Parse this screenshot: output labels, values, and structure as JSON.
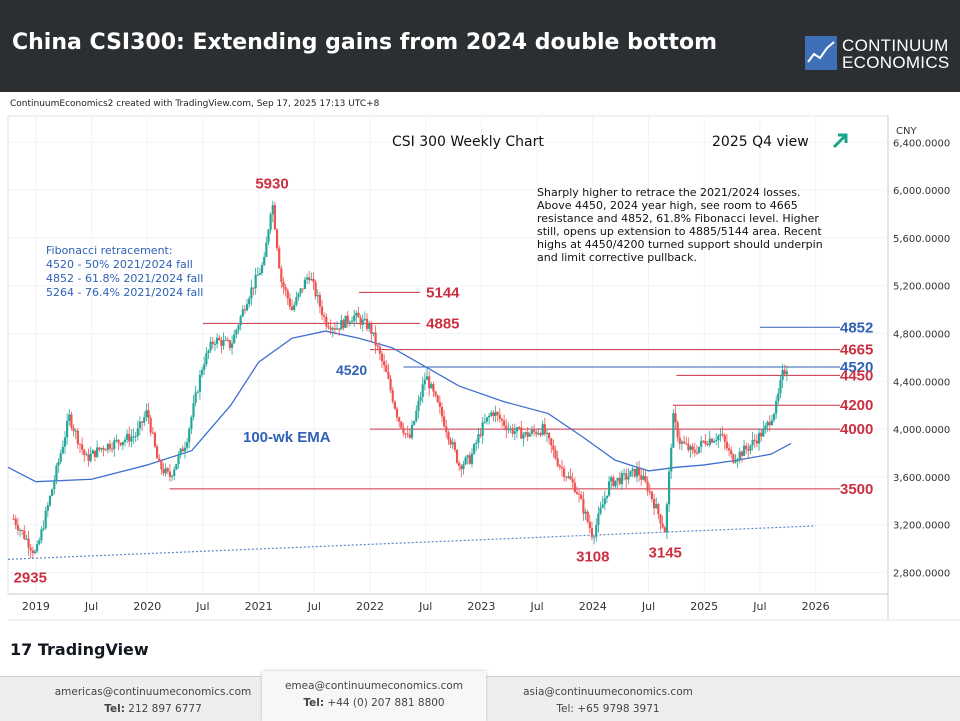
{
  "header": {
    "title": "China CSI300: Extending gains from 2024 double bottom",
    "logo_line1": "CONTINUUM",
    "logo_line2": "ECONOMICS"
  },
  "credit": "ContinuumEconomics2 created with TradingView.com, Sep 17, 2025 17:13 UTC+8",
  "chart_data": {
    "type": "candlestick",
    "title": "CSI 300 Weekly Chart",
    "subtitle": "2025 Q4 view",
    "currency_label": "CNY",
    "x_ticks": [
      "2019",
      "Jul",
      "2020",
      "Jul",
      "2021",
      "Jul",
      "2022",
      "Jul",
      "2023",
      "Jul",
      "2024",
      "Jul",
      "2025",
      "Jul",
      "2026"
    ],
    "y_ticks": [
      "6,400.0000",
      "6,000.0000",
      "5,600.0000",
      "5,200.0000",
      "4,800.0000",
      "4,400.0000",
      "4,000.0000",
      "3,600.0000",
      "3,200.0000",
      "2,800.0000"
    ],
    "y_tick_values": [
      6400,
      6000,
      5600,
      5200,
      4800,
      4400,
      4000,
      3600,
      3200,
      2800
    ],
    "ylim": [
      2620,
      6620
    ],
    "xlim": [
      2018.75,
      2026.65
    ],
    "price_path": [
      [
        2018.8,
        3250
      ],
      [
        2019.0,
        2950
      ],
      [
        2019.12,
        3400
      ],
      [
        2019.3,
        4100
      ],
      [
        2019.45,
        3750
      ],
      [
        2019.6,
        3850
      ],
      [
        2019.75,
        3900
      ],
      [
        2019.9,
        3950
      ],
      [
        2020.0,
        4150
      ],
      [
        2020.1,
        3700
      ],
      [
        2020.2,
        3600
      ],
      [
        2020.35,
        3900
      ],
      [
        2020.5,
        4550
      ],
      [
        2020.6,
        4750
      ],
      [
        2020.75,
        4700
      ],
      [
        2020.9,
        5100
      ],
      [
        2021.05,
        5400
      ],
      [
        2021.12,
        5930
      ],
      [
        2021.2,
        5250
      ],
      [
        2021.3,
        5000
      ],
      [
        2021.45,
        5300
      ],
      [
        2021.6,
        4900
      ],
      [
        2021.7,
        4850
      ],
      [
        2021.85,
        4950
      ],
      [
        2022.0,
        4850
      ],
      [
        2022.15,
        4450
      ],
      [
        2022.25,
        4100
      ],
      [
        2022.35,
        3900
      ],
      [
        2022.5,
        4450
      ],
      [
        2022.65,
        4100
      ],
      [
        2022.8,
        3700
      ],
      [
        2022.9,
        3750
      ],
      [
        2023.0,
        4000
      ],
      [
        2023.1,
        4150
      ],
      [
        2023.25,
        4000
      ],
      [
        2023.4,
        3950
      ],
      [
        2023.55,
        4000
      ],
      [
        2023.7,
        3700
      ],
      [
        2023.85,
        3500
      ],
      [
        2024.0,
        3108
      ],
      [
        2024.15,
        3550
      ],
      [
        2024.3,
        3600
      ],
      [
        2024.4,
        3650
      ],
      [
        2024.5,
        3500
      ],
      [
        2024.65,
        3145
      ],
      [
        2024.72,
        4100
      ],
      [
        2024.78,
        3900
      ],
      [
        2024.9,
        3800
      ],
      [
        2025.0,
        3900
      ],
      [
        2025.15,
        3950
      ],
      [
        2025.25,
        3750
      ],
      [
        2025.4,
        3850
      ],
      [
        2025.55,
        4000
      ],
      [
        2025.65,
        4200
      ],
      [
        2025.7,
        4450
      ],
      [
        2025.75,
        4530
      ]
    ],
    "ema_path": [
      [
        2018.75,
        3680
      ],
      [
        2019.0,
        3560
      ],
      [
        2019.5,
        3580
      ],
      [
        2020.0,
        3700
      ],
      [
        2020.4,
        3820
      ],
      [
        2020.75,
        4200
      ],
      [
        2021.0,
        4560
      ],
      [
        2021.3,
        4760
      ],
      [
        2021.6,
        4820
      ],
      [
        2021.9,
        4760
      ],
      [
        2022.2,
        4680
      ],
      [
        2022.5,
        4520
      ],
      [
        2022.8,
        4360
      ],
      [
        2023.2,
        4230
      ],
      [
        2023.6,
        4130
      ],
      [
        2023.9,
        3940
      ],
      [
        2024.2,
        3740
      ],
      [
        2024.5,
        3650
      ],
      [
        2024.75,
        3680
      ],
      [
        2025.0,
        3700
      ],
      [
        2025.3,
        3740
      ],
      [
        2025.6,
        3790
      ],
      [
        2025.78,
        3880
      ]
    ],
    "trendline": {
      "label": "trendline",
      "from": [
        2018.75,
        2910
      ],
      "to": [
        2026.0,
        3190
      ]
    },
    "levels": [
      {
        "value": 4852,
        "label": "4852",
        "color": "#2f61b5",
        "x_from": 2025.5
      },
      {
        "value": 4665,
        "label": "4665",
        "color": "#cc3040",
        "x_from": 2022.0
      },
      {
        "value": 4520,
        "label": "4520",
        "color": "#2f61b5",
        "x_from": 2022.3
      },
      {
        "value": 4450,
        "label": "4450",
        "color": "#cc3040",
        "x_from": 2024.75
      },
      {
        "value": 4200,
        "label": "4200",
        "color": "#cc3040",
        "x_from": 2024.72
      },
      {
        "value": 4000,
        "label": "4000",
        "color": "#cc3040",
        "x_from": 2022.0
      },
      {
        "value": 3500,
        "label": "3500",
        "color": "#cc3040",
        "x_from": 2020.2
      },
      {
        "value": 5144,
        "label": "5144",
        "color": "#cc3040",
        "x_from": 2021.9,
        "x_to": 2022.45
      },
      {
        "value": 4885,
        "label": "4885",
        "color": "#cc3040",
        "x_from": 2020.5,
        "x_to": 2022.45
      }
    ],
    "annotations": [
      {
        "text": "5930",
        "value": 5930,
        "x": 2021.12
      },
      {
        "text": "2935",
        "value": 2935,
        "x": 2018.95
      },
      {
        "text": "3108",
        "value": 3108,
        "x": 2024.0
      },
      {
        "text": "3145",
        "value": 3145,
        "x": 2024.65
      }
    ],
    "ema_label": "100-wk EMA",
    "label_4520": "4520",
    "fib_title": "Fibonacci retracement:",
    "fib_lines": [
      "4520 - 50% 2021/2024 fall",
      "4852 - 61.8% 2021/2024 fall",
      "5264 - 76.4% 2021/2024 fall"
    ],
    "notes": "Sharply higher to retrace the 2021/2024 losses. Above 4450, 2024 year high, see room to 4665 resistance and 4852, 61.8% Fibonacci level. Higher still, opens up extension to 4885/5144 area. Recent highs at 4450/4200 turned support should underpin and limit corrective pullback.",
    "arrow_icon": "arrow-up-right-icon",
    "colors": {
      "up": "#26a69a",
      "down": "#ef5350",
      "ema": "#3f6fd1",
      "trend": "#5b86c5",
      "red_label": "#cc3040",
      "blue_label": "#2f61b5"
    }
  },
  "tv_logo": "TradingView",
  "footer": {
    "contacts": [
      {
        "email": "americas@continuumeconomics.com",
        "tel_label": "Tel:",
        "tel": "212 897 6777"
      },
      {
        "email": "emea@continuumeconomics.com",
        "tel_label": "Tel:",
        "tel": "+44 (0) 207 881 8800"
      },
      {
        "email": "asia@continuumeconomics.com",
        "tel_label": "Tel:",
        "tel": "+65 9798 3971"
      }
    ]
  }
}
